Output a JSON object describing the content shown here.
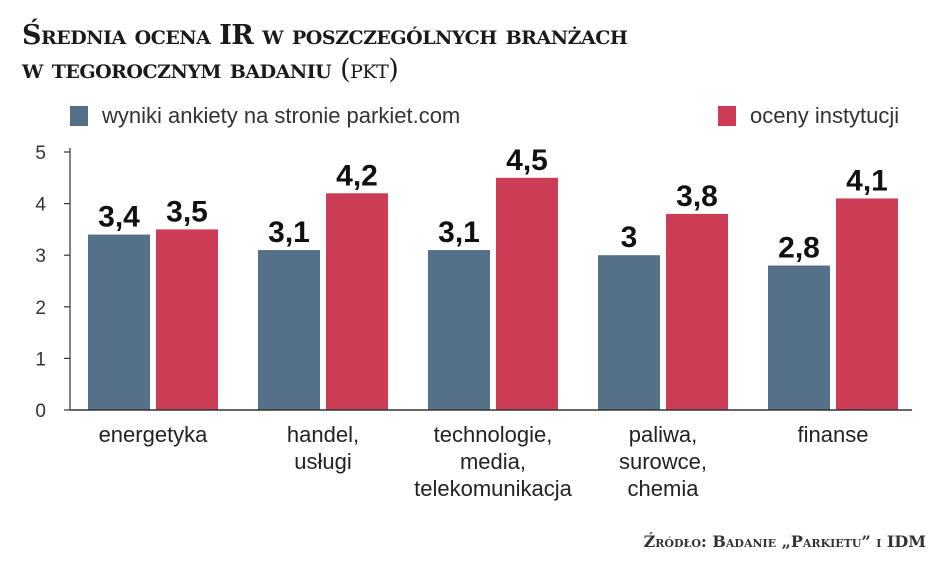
{
  "title_line1": "Średnia ocena IR w poszczególnych branżach",
  "title_line2": "w tegorocznym badaniu",
  "title_unit": "(pkt)",
  "source": "Źródło: Badanie „Parkietu” i IDM",
  "chart_data": {
    "type": "bar",
    "title": "Średnia ocena IR w poszczególnych branżach w tegorocznym badaniu (pkt)",
    "categories": [
      [
        "energetyka"
      ],
      [
        "handel,",
        "usługi"
      ],
      [
        "technologie,",
        "media,",
        "telekomunikacja"
      ],
      [
        "paliwa,",
        "surowce,",
        "chemia"
      ],
      [
        "finanse"
      ]
    ],
    "series": [
      {
        "name": "wyniki ankiety na stronie parkiet.com",
        "color": "#55718a",
        "values": [
          3.4,
          3.1,
          3.1,
          3,
          2.8
        ],
        "labels": [
          "3,4",
          "3,1",
          "3,1",
          "3",
          "2,8"
        ]
      },
      {
        "name": "oceny instytucji",
        "color": "#cc3d55",
        "values": [
          3.5,
          4.2,
          4.5,
          3.8,
          4.1
        ],
        "labels": [
          "3,5",
          "4,2",
          "4,5",
          "3,8",
          "4,1"
        ]
      }
    ],
    "yticks": [
      "0",
      "1",
      "2",
      "3",
      "4",
      "5"
    ],
    "ylim": [
      0,
      5
    ],
    "grid": false,
    "legend": "top"
  }
}
